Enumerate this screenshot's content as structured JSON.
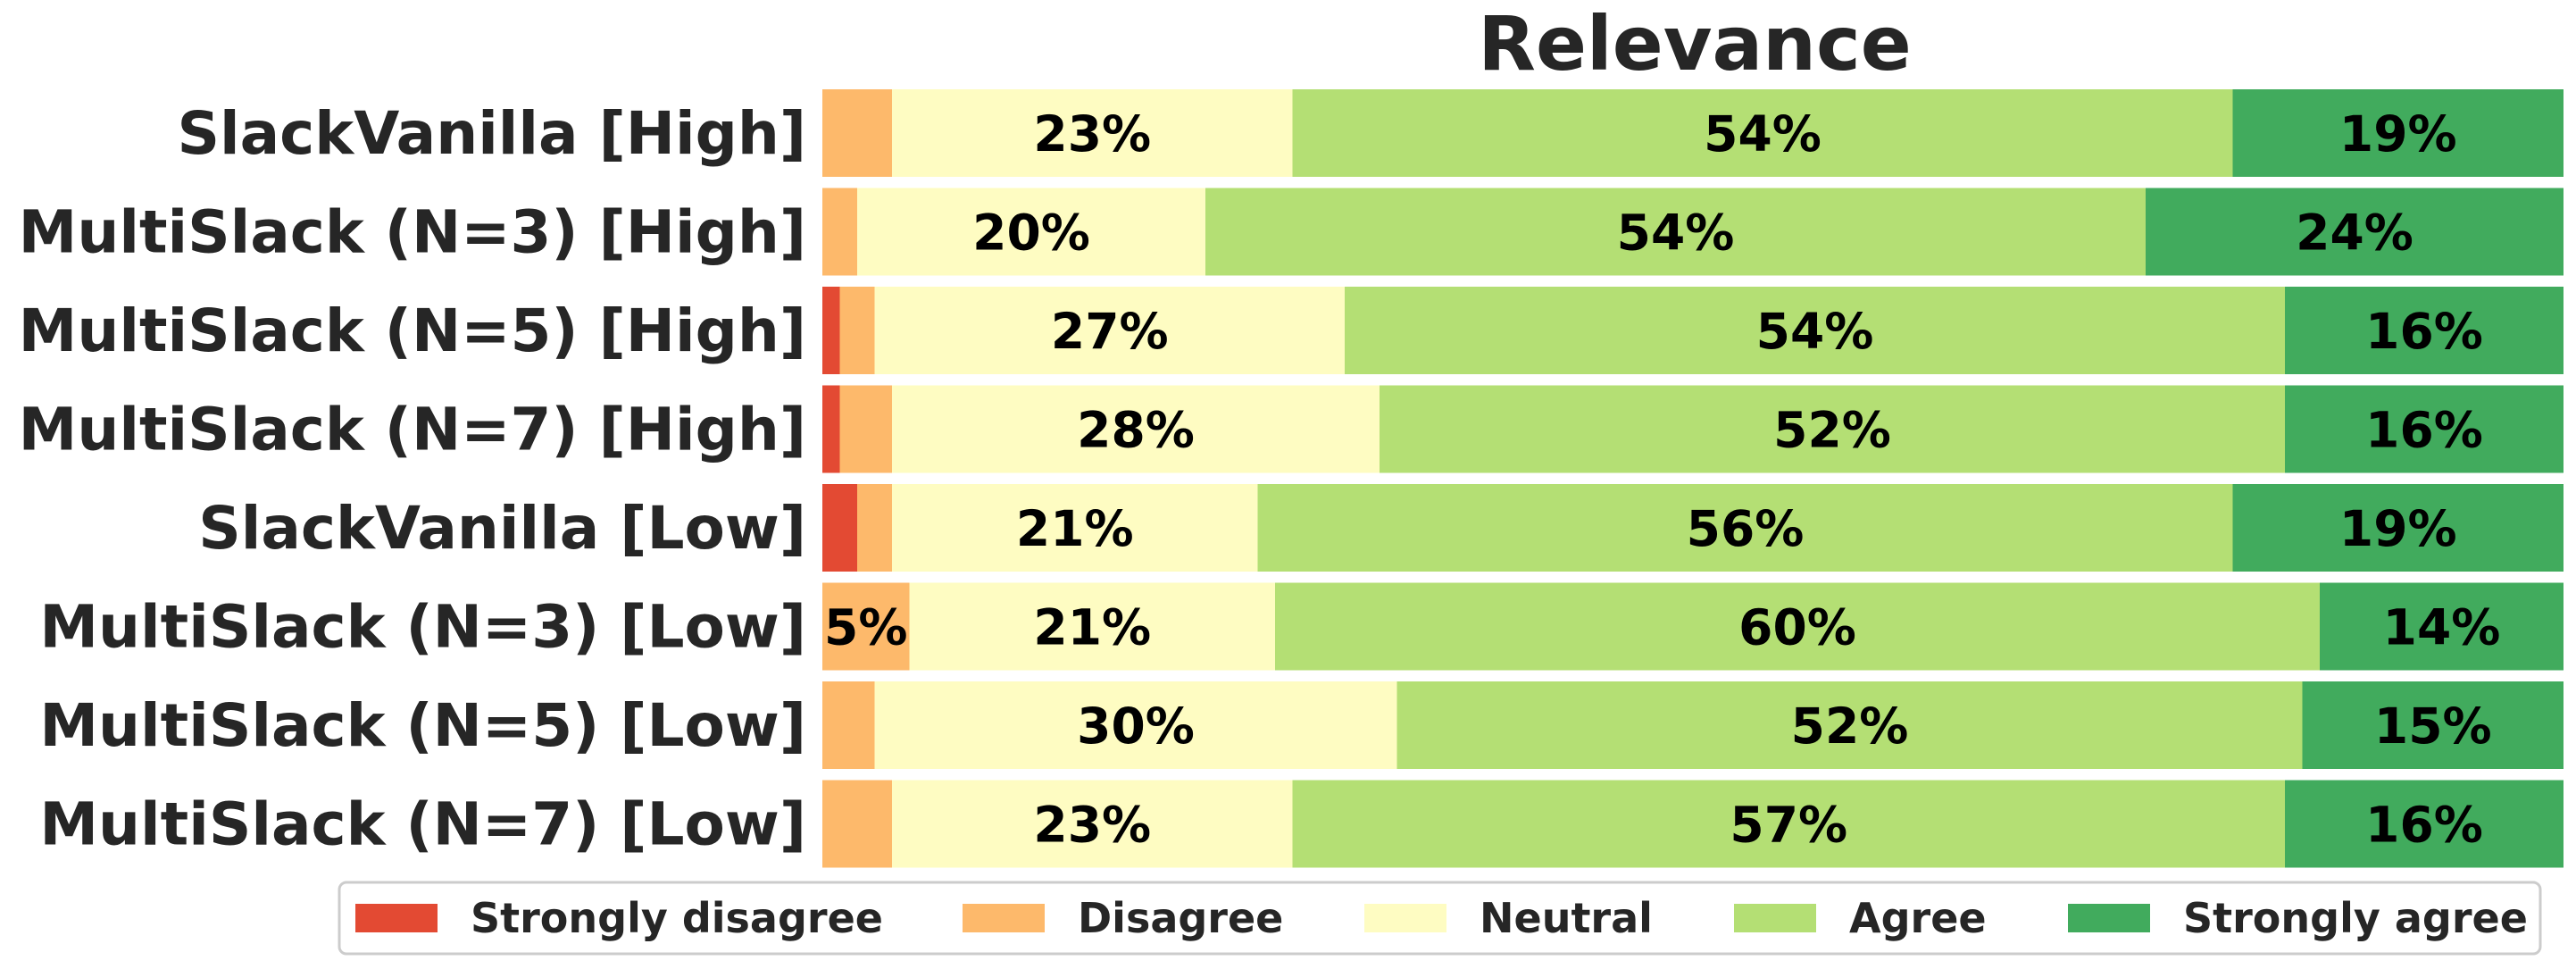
{
  "chart_data": {
    "type": "bar",
    "orientation": "horizontal",
    "stacked": true,
    "title": "Relevance",
    "xlim": [
      0,
      100
    ],
    "categories": [
      "SlackVanilla [High]",
      "MultiSlack (N=3) [High]",
      "MultiSlack (N=5) [High]",
      "MultiSlack (N=7) [High]",
      "SlackVanilla [Low]",
      "MultiSlack (N=3) [Low]",
      "MultiSlack (N=5) [Low]",
      "MultiSlack (N=7) [Low]"
    ],
    "series": [
      {
        "name": "Strongly disagree",
        "color": "#e34a33",
        "values": [
          0,
          0,
          1,
          1,
          2,
          0,
          0,
          0
        ]
      },
      {
        "name": "Disagree",
        "color": "#fdb96b",
        "values": [
          4,
          2,
          2,
          3,
          2,
          5,
          3,
          4
        ]
      },
      {
        "name": "Neutral",
        "color": "#fefcc2",
        "values": [
          23,
          20,
          27,
          28,
          21,
          21,
          30,
          23
        ]
      },
      {
        "name": "Agree",
        "color": "#b4df74",
        "values": [
          54,
          54,
          54,
          52,
          56,
          60,
          52,
          57
        ]
      },
      {
        "name": "Strongly agree",
        "color": "#41ab5d",
        "values": [
          19,
          24,
          16,
          16,
          19,
          14,
          15,
          16
        ]
      }
    ],
    "label_threshold": 5,
    "legend_position": "bottom-center"
  }
}
